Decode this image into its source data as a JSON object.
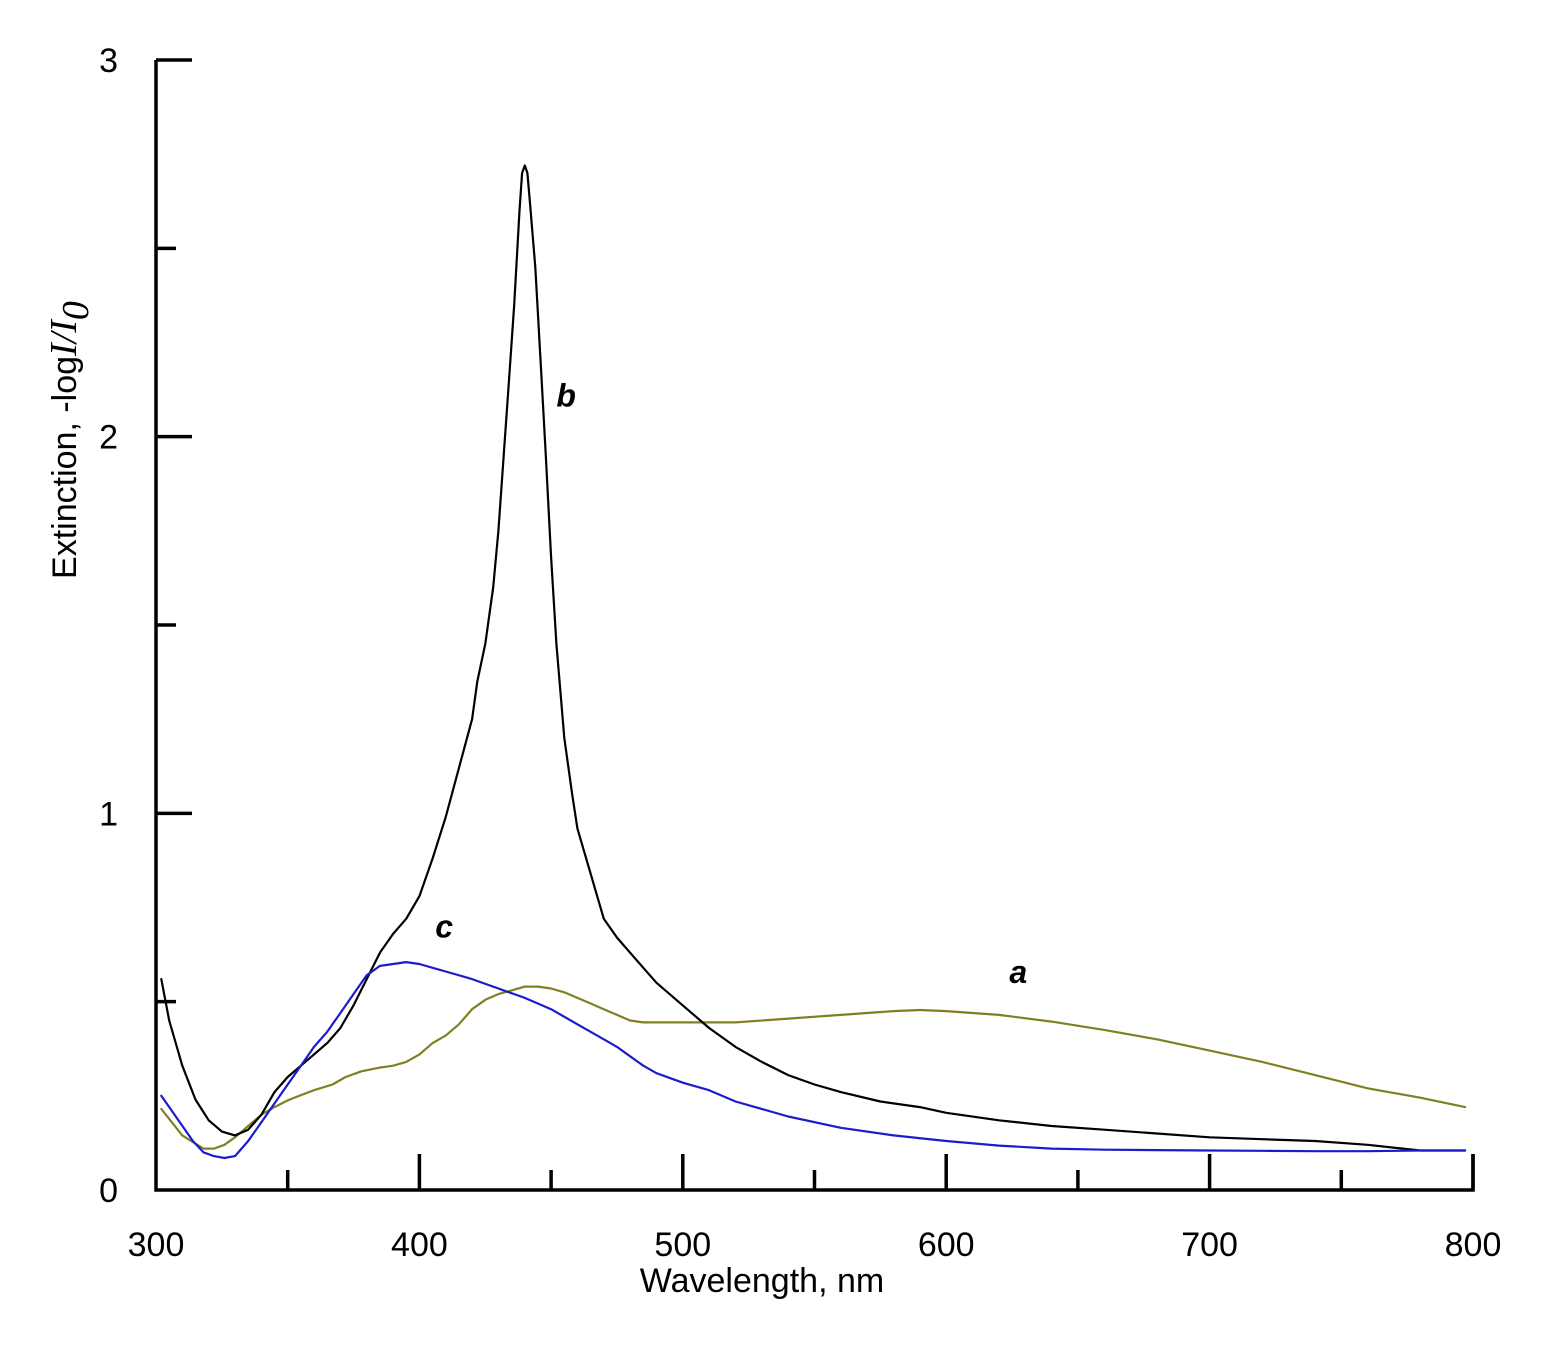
{
  "chart_data": {
    "type": "line",
    "xlabel": "Wavelength, nm",
    "ylabel": {
      "prefix": "Extinction, -log",
      "I": "I",
      "slash": "/",
      "I0": "I",
      "sub": "0"
    },
    "xlim": [
      300,
      800
    ],
    "ylim": [
      0,
      3
    ],
    "x_ticks": [
      300,
      400,
      500,
      600,
      700,
      800
    ],
    "x_minor_ticks": [
      350,
      450,
      550,
      650,
      750
    ],
    "y_ticks": [
      0,
      1,
      2,
      3
    ],
    "y_minor_ticks": [
      0.5,
      1.5,
      2.5
    ],
    "grid": false,
    "series": [
      {
        "label": "a",
        "color": "#808020",
        "label_pos": [
          624,
          0.55
        ],
        "x": [
          302,
          310,
          318,
          322,
          326,
          330,
          335,
          340,
          345,
          350,
          355,
          360,
          367,
          372,
          378,
          385,
          390,
          395,
          400,
          405,
          410,
          415,
          420,
          425,
          430,
          435,
          440,
          445,
          450,
          455,
          460,
          465,
          470,
          475,
          480,
          485,
          490,
          500,
          520,
          540,
          560,
          580,
          590,
          600,
          620,
          640,
          660,
          680,
          700,
          720,
          740,
          760,
          780,
          797
        ],
        "y": [
          0.215,
          0.145,
          0.11,
          0.11,
          0.12,
          0.14,
          0.17,
          0.2,
          0.22,
          0.238,
          0.252,
          0.265,
          0.28,
          0.3,
          0.315,
          0.325,
          0.33,
          0.34,
          0.36,
          0.39,
          0.41,
          0.44,
          0.48,
          0.505,
          0.52,
          0.53,
          0.54,
          0.54,
          0.535,
          0.525,
          0.51,
          0.495,
          0.48,
          0.465,
          0.45,
          0.445,
          0.445,
          0.445,
          0.445,
          0.455,
          0.465,
          0.475,
          0.478,
          0.475,
          0.465,
          0.447,
          0.425,
          0.4,
          0.37,
          0.34,
          0.305,
          0.27,
          0.245,
          0.22
        ]
      },
      {
        "label": "b",
        "color": "#000000",
        "label_pos": [
          452,
          2.08
        ],
        "x": [
          302,
          305,
          310,
          315,
          320,
          325,
          330,
          335,
          340,
          345,
          350,
          355,
          360,
          365,
          370,
          375,
          380,
          385,
          390,
          395,
          400,
          405,
          410,
          415,
          420,
          422,
          425,
          428,
          430,
          432,
          434,
          436,
          438,
          439,
          440,
          441,
          442,
          444,
          446,
          448,
          450,
          452,
          455,
          458,
          460,
          465,
          470,
          475,
          480,
          485,
          490,
          495,
          500,
          510,
          520,
          530,
          540,
          550,
          560,
          575,
          590,
          600,
          620,
          640,
          660,
          680,
          700,
          720,
          740,
          760,
          780,
          797
        ],
        "y": [
          0.56,
          0.45,
          0.33,
          0.24,
          0.185,
          0.155,
          0.145,
          0.16,
          0.2,
          0.26,
          0.3,
          0.33,
          0.36,
          0.39,
          0.43,
          0.49,
          0.56,
          0.63,
          0.68,
          0.72,
          0.78,
          0.88,
          0.99,
          1.12,
          1.25,
          1.35,
          1.45,
          1.6,
          1.75,
          1.95,
          2.15,
          2.35,
          2.6,
          2.7,
          2.72,
          2.7,
          2.62,
          2.45,
          2.2,
          1.95,
          1.68,
          1.45,
          1.2,
          1.05,
          0.96,
          0.84,
          0.72,
          0.67,
          0.63,
          0.59,
          0.55,
          0.52,
          0.49,
          0.43,
          0.38,
          0.34,
          0.305,
          0.28,
          0.26,
          0.235,
          0.22,
          0.205,
          0.185,
          0.17,
          0.16,
          0.15,
          0.14,
          0.135,
          0.13,
          0.12,
          0.105,
          0.105
        ]
      },
      {
        "label": "c",
        "color": "#1c1ccc",
        "label_pos": [
          406,
          0.67
        ],
        "x": [
          302,
          308,
          314,
          318,
          322,
          326,
          330,
          335,
          340,
          345,
          350,
          355,
          360,
          365,
          370,
          375,
          380,
          385,
          390,
          395,
          400,
          405,
          410,
          420,
          430,
          440,
          450,
          460,
          470,
          475,
          480,
          485,
          490,
          500,
          510,
          520,
          540,
          560,
          580,
          600,
          620,
          640,
          660,
          680,
          700,
          720,
          740,
          760,
          780,
          797
        ],
        "y": [
          0.25,
          0.19,
          0.13,
          0.1,
          0.09,
          0.085,
          0.09,
          0.13,
          0.18,
          0.23,
          0.28,
          0.33,
          0.38,
          0.42,
          0.47,
          0.52,
          0.57,
          0.595,
          0.6,
          0.605,
          0.6,
          0.59,
          0.58,
          0.56,
          0.535,
          0.51,
          0.48,
          0.44,
          0.4,
          0.38,
          0.355,
          0.33,
          0.31,
          0.285,
          0.265,
          0.235,
          0.195,
          0.165,
          0.145,
          0.13,
          0.118,
          0.11,
          0.107,
          0.106,
          0.105,
          0.104,
          0.103,
          0.103,
          0.105,
          0.105
        ]
      }
    ]
  }
}
